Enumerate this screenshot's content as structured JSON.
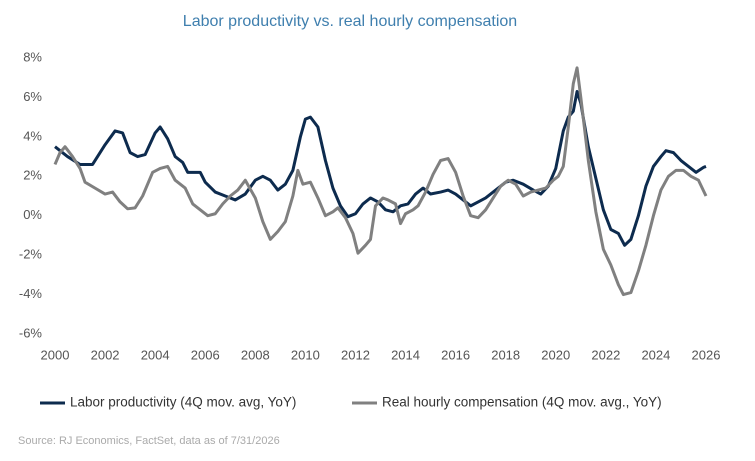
{
  "chart_data": {
    "type": "line",
    "title": "Labor productivity vs. real hourly compensation",
    "source": "Source: RJ Economics, FactSet, data as of 7/31/2026",
    "xlim": [
      2000,
      2026
    ],
    "xticks": [
      2000,
      2002,
      2004,
      2006,
      2008,
      2010,
      2012,
      2014,
      2016,
      2018,
      2020,
      2022,
      2024,
      2026
    ],
    "ylim": [
      -6,
      8
    ],
    "yticks": [
      {
        "value": -6,
        "label": "-6%"
      },
      {
        "value": -4,
        "label": "-4%"
      },
      {
        "value": -2,
        "label": "-2%"
      },
      {
        "value": 0,
        "label": "0%"
      },
      {
        "value": 2,
        "label": "2%"
      },
      {
        "value": 4,
        "label": "4%"
      },
      {
        "value": 6,
        "label": "6%"
      },
      {
        "value": 8,
        "label": "8%"
      }
    ],
    "grid": false,
    "legend": "bottom",
    "series": [
      {
        "name": "Labor productivity (4Q mov. avg, YoY)",
        "color": "#0d2b4e",
        "x": [
          2000,
          2000.5,
          2001,
          2001.5,
          2002,
          2002.4,
          2002.7,
          2003,
          2003.3,
          2003.6,
          2004,
          2004.2,
          2004.5,
          2004.8,
          2005.1,
          2005.3,
          2005.8,
          2006,
          2006.4,
          2006.8,
          2007.2,
          2007.6,
          2008,
          2008.3,
          2008.6,
          2008.9,
          2009.2,
          2009.5,
          2009.8,
          2010,
          2010.2,
          2010.5,
          2010.8,
          2011.1,
          2011.4,
          2011.7,
          2012,
          2012.3,
          2012.6,
          2012.9,
          2013.2,
          2013.5,
          2013.8,
          2014.1,
          2014.4,
          2014.7,
          2015,
          2015.4,
          2015.7,
          2016,
          2016.3,
          2016.6,
          2016.9,
          2017.2,
          2017.6,
          2018,
          2018.3,
          2018.7,
          2019.1,
          2019.4,
          2019.7,
          2020,
          2020.3,
          2020.5,
          2020.7,
          2020.85,
          2021,
          2021.3,
          2021.6,
          2021.9,
          2022.2,
          2022.5,
          2022.75,
          2023,
          2023.3,
          2023.6,
          2023.9,
          2024.2,
          2024.4,
          2024.7,
          2025,
          2025.3,
          2025.6,
          2025.9,
          2026
        ],
        "values": [
          3.5,
          3.0,
          2.6,
          2.6,
          3.6,
          4.3,
          4.2,
          3.2,
          3.0,
          3.1,
          4.2,
          4.5,
          3.9,
          3.0,
          2.7,
          2.2,
          2.2,
          1.7,
          1.2,
          1.0,
          0.8,
          1.1,
          1.8,
          2.0,
          1.8,
          1.3,
          1.6,
          2.3,
          4.0,
          4.9,
          5.0,
          4.5,
          2.8,
          1.4,
          0.5,
          -0.05,
          0.1,
          0.6,
          0.9,
          0.7,
          0.3,
          0.2,
          0.5,
          0.6,
          1.1,
          1.4,
          1.1,
          1.2,
          1.3,
          1.1,
          0.8,
          0.5,
          0.7,
          0.9,
          1.3,
          1.7,
          1.8,
          1.6,
          1.3,
          1.1,
          1.5,
          2.4,
          4.3,
          5.0,
          5.3,
          6.3,
          5.7,
          3.5,
          1.9,
          0.3,
          -0.7,
          -0.9,
          -1.5,
          -1.2,
          0.0,
          1.5,
          2.5,
          3.0,
          3.3,
          3.2,
          2.8,
          2.5,
          2.2,
          2.45,
          2.5
        ]
      },
      {
        "name": "Real hourly compensation (4Q mov. avg., YoY)",
        "color": "#808080",
        "x": [
          2000,
          2000.2,
          2000.4,
          2000.7,
          2001,
          2001.2,
          2001.6,
          2002,
          2002.3,
          2002.6,
          2002.9,
          2003.2,
          2003.5,
          2003.9,
          2004.2,
          2004.5,
          2004.8,
          2005.2,
          2005.5,
          2005.8,
          2006.1,
          2006.4,
          2006.7,
          2007,
          2007.3,
          2007.6,
          2008,
          2008.3,
          2008.6,
          2008.9,
          2009.2,
          2009.5,
          2009.7,
          2009.9,
          2010.2,
          2010.5,
          2010.8,
          2011.1,
          2011.3,
          2011.6,
          2011.9,
          2012.1,
          2012.4,
          2012.6,
          2012.8,
          2013.1,
          2013.3,
          2013.6,
          2013.8,
          2014,
          2014.3,
          2014.5,
          2014.8,
          2015.1,
          2015.4,
          2015.7,
          2016,
          2016.3,
          2016.6,
          2016.9,
          2017.2,
          2017.5,
          2017.8,
          2018.1,
          2018.4,
          2018.7,
          2019,
          2019.3,
          2019.6,
          2019.9,
          2020.1,
          2020.3,
          2020.5,
          2020.7,
          2020.85,
          2021,
          2021.3,
          2021.6,
          2021.9,
          2022.2,
          2022.5,
          2022.7,
          2023,
          2023.3,
          2023.6,
          2023.9,
          2024.2,
          2024.5,
          2024.8,
          2025.1,
          2025.4,
          2025.7,
          2026
        ],
        "values": [
          2.6,
          3.2,
          3.5,
          3.0,
          2.4,
          1.7,
          1.4,
          1.1,
          1.2,
          0.7,
          0.35,
          0.4,
          1.0,
          2.2,
          2.4,
          2.5,
          1.8,
          1.4,
          0.6,
          0.3,
          0.0,
          0.1,
          0.6,
          1.0,
          1.3,
          1.8,
          0.9,
          -0.3,
          -1.2,
          -0.8,
          -0.3,
          1.0,
          2.3,
          1.6,
          1.7,
          0.9,
          0.0,
          0.2,
          0.4,
          -0.1,
          -0.9,
          -1.9,
          -1.5,
          -1.2,
          0.5,
          0.9,
          0.8,
          0.6,
          -0.4,
          0.1,
          0.3,
          0.5,
          1.2,
          2.1,
          2.8,
          2.9,
          2.2,
          1.0,
          0.0,
          -0.1,
          0.3,
          0.9,
          1.5,
          1.8,
          1.6,
          1.0,
          1.2,
          1.3,
          1.4,
          1.8,
          2.0,
          2.5,
          4.5,
          6.7,
          7.5,
          6.0,
          2.8,
          0.2,
          -1.7,
          -2.5,
          -3.5,
          -4.0,
          -3.9,
          -2.8,
          -1.5,
          0.0,
          1.3,
          2.0,
          2.3,
          2.3,
          2.0,
          1.8,
          1.0
        ]
      }
    ]
  }
}
